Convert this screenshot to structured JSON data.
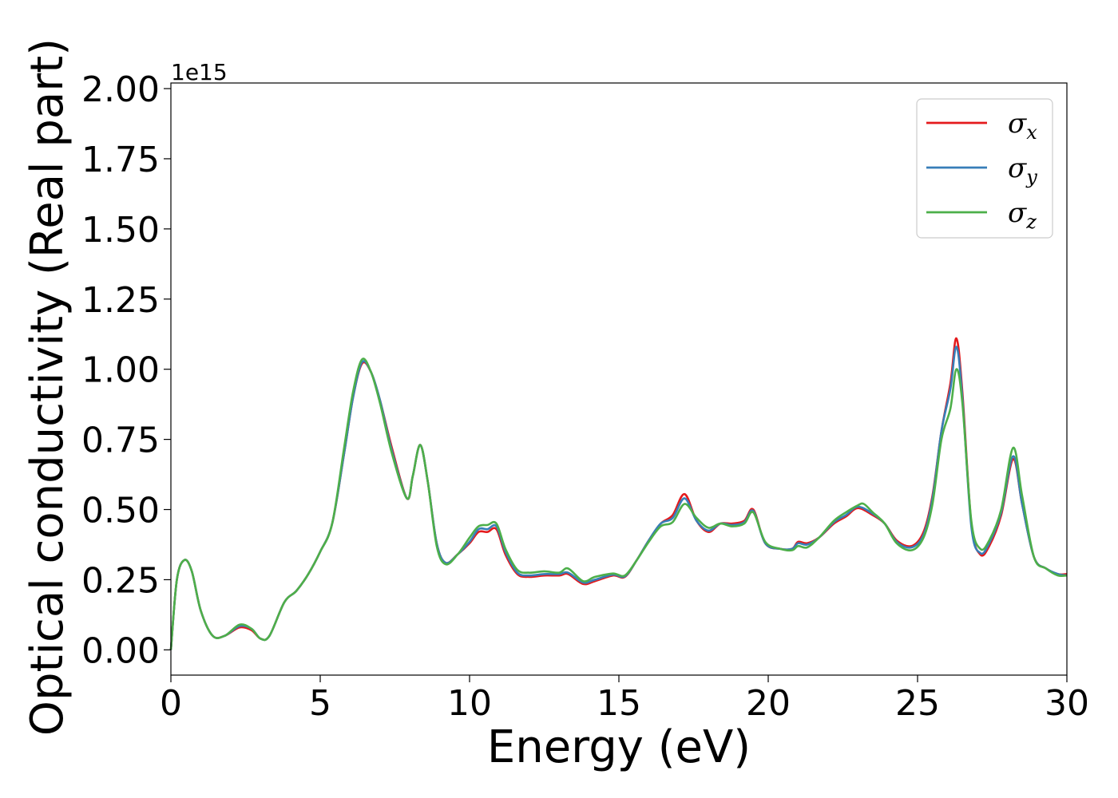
{
  "chart_data": {
    "type": "line",
    "xlabel": "Energy (eV)",
    "ylabel": "Optical conductivity (Real part)",
    "y_offset_label": "1e15",
    "xlim": [
      0,
      30
    ],
    "ylim": [
      -0.09,
      2.02
    ],
    "x_ticks": [
      0,
      5,
      10,
      15,
      20,
      25,
      30
    ],
    "x_tick_labels": [
      "0",
      "5",
      "10",
      "15",
      "20",
      "25",
      "30"
    ],
    "y_ticks": [
      0.0,
      0.25,
      0.5,
      0.75,
      1.0,
      1.25,
      1.5,
      1.75,
      2.0
    ],
    "y_tick_labels": [
      "0.00",
      "0.25",
      "0.50",
      "0.75",
      "1.00",
      "1.25",
      "1.50",
      "1.75",
      "2.00"
    ],
    "grid": false,
    "legend_position": "top-right",
    "series": [
      {
        "name": "σx",
        "label_symbol": "σ",
        "label_subscript": "x",
        "color": "#e41a1c",
        "points": [
          [
            0,
            0
          ],
          [
            0.2,
            0.25
          ],
          [
            0.45,
            0.32
          ],
          [
            0.7,
            0.28
          ],
          [
            1.0,
            0.14
          ],
          [
            1.4,
            0.05
          ],
          [
            1.8,
            0.05
          ],
          [
            2.3,
            0.08
          ],
          [
            2.7,
            0.07
          ],
          [
            3.0,
            0.04
          ],
          [
            3.3,
            0.05
          ],
          [
            3.8,
            0.17
          ],
          [
            4.2,
            0.21
          ],
          [
            4.6,
            0.27
          ],
          [
            5.0,
            0.35
          ],
          [
            5.4,
            0.45
          ],
          [
            5.8,
            0.7
          ],
          [
            6.1,
            0.9
          ],
          [
            6.4,
            1.02
          ],
          [
            6.7,
            0.99
          ],
          [
            7.0,
            0.89
          ],
          [
            7.4,
            0.72
          ],
          [
            7.9,
            0.54
          ],
          [
            8.1,
            0.62
          ],
          [
            8.35,
            0.73
          ],
          [
            8.6,
            0.6
          ],
          [
            8.9,
            0.38
          ],
          [
            9.2,
            0.31
          ],
          [
            9.6,
            0.34
          ],
          [
            10.0,
            0.38
          ],
          [
            10.3,
            0.42
          ],
          [
            10.6,
            0.42
          ],
          [
            10.9,
            0.43
          ],
          [
            11.2,
            0.34
          ],
          [
            11.6,
            0.27
          ],
          [
            12.0,
            0.26
          ],
          [
            12.5,
            0.265
          ],
          [
            13.0,
            0.265
          ],
          [
            13.3,
            0.27
          ],
          [
            13.8,
            0.235
          ],
          [
            14.2,
            0.245
          ],
          [
            14.8,
            0.265
          ],
          [
            15.2,
            0.26
          ],
          [
            15.6,
            0.32
          ],
          [
            16.0,
            0.39
          ],
          [
            16.4,
            0.45
          ],
          [
            16.8,
            0.48
          ],
          [
            17.2,
            0.555
          ],
          [
            17.6,
            0.46
          ],
          [
            18.0,
            0.42
          ],
          [
            18.4,
            0.45
          ],
          [
            18.8,
            0.45
          ],
          [
            19.2,
            0.46
          ],
          [
            19.5,
            0.5
          ],
          [
            19.9,
            0.38
          ],
          [
            20.4,
            0.36
          ],
          [
            20.8,
            0.36
          ],
          [
            21.0,
            0.385
          ],
          [
            21.3,
            0.38
          ],
          [
            21.7,
            0.4
          ],
          [
            22.2,
            0.45
          ],
          [
            22.6,
            0.475
          ],
          [
            23.0,
            0.505
          ],
          [
            23.5,
            0.48
          ],
          [
            23.9,
            0.45
          ],
          [
            24.3,
            0.39
          ],
          [
            24.8,
            0.37
          ],
          [
            25.2,
            0.42
          ],
          [
            25.5,
            0.55
          ],
          [
            25.8,
            0.78
          ],
          [
            26.1,
            0.95
          ],
          [
            26.3,
            1.11
          ],
          [
            26.5,
            0.92
          ],
          [
            26.8,
            0.45
          ],
          [
            27.1,
            0.34
          ],
          [
            27.4,
            0.37
          ],
          [
            27.8,
            0.48
          ],
          [
            28.2,
            0.68
          ],
          [
            28.5,
            0.52
          ],
          [
            28.9,
            0.33
          ],
          [
            29.3,
            0.29
          ],
          [
            29.7,
            0.27
          ],
          [
            30.0,
            0.27
          ]
        ]
      },
      {
        "name": "σy",
        "label_symbol": "σ",
        "label_subscript": "y",
        "color": "#377eb8",
        "points": [
          [
            0,
            0
          ],
          [
            0.2,
            0.25
          ],
          [
            0.45,
            0.32
          ],
          [
            0.7,
            0.28
          ],
          [
            1.0,
            0.14
          ],
          [
            1.4,
            0.05
          ],
          [
            1.8,
            0.05
          ],
          [
            2.3,
            0.085
          ],
          [
            2.7,
            0.075
          ],
          [
            3.0,
            0.04
          ],
          [
            3.3,
            0.05
          ],
          [
            3.8,
            0.17
          ],
          [
            4.2,
            0.21
          ],
          [
            4.6,
            0.27
          ],
          [
            5.0,
            0.35
          ],
          [
            5.4,
            0.45
          ],
          [
            5.8,
            0.7
          ],
          [
            6.1,
            0.9
          ],
          [
            6.4,
            1.025
          ],
          [
            6.7,
            0.99
          ],
          [
            7.0,
            0.89
          ],
          [
            7.4,
            0.71
          ],
          [
            7.9,
            0.54
          ],
          [
            8.1,
            0.62
          ],
          [
            8.35,
            0.73
          ],
          [
            8.6,
            0.6
          ],
          [
            8.9,
            0.38
          ],
          [
            9.2,
            0.31
          ],
          [
            9.6,
            0.34
          ],
          [
            10.0,
            0.385
          ],
          [
            10.3,
            0.43
          ],
          [
            10.6,
            0.43
          ],
          [
            10.9,
            0.44
          ],
          [
            11.2,
            0.35
          ],
          [
            11.6,
            0.275
          ],
          [
            12.0,
            0.265
          ],
          [
            12.5,
            0.27
          ],
          [
            13.0,
            0.27
          ],
          [
            13.3,
            0.275
          ],
          [
            13.8,
            0.24
          ],
          [
            14.2,
            0.25
          ],
          [
            14.8,
            0.268
          ],
          [
            15.2,
            0.262
          ],
          [
            15.6,
            0.32
          ],
          [
            16.0,
            0.39
          ],
          [
            16.4,
            0.45
          ],
          [
            16.8,
            0.47
          ],
          [
            17.2,
            0.54
          ],
          [
            17.6,
            0.46
          ],
          [
            18.0,
            0.425
          ],
          [
            18.4,
            0.45
          ],
          [
            18.8,
            0.445
          ],
          [
            19.2,
            0.455
          ],
          [
            19.5,
            0.495
          ],
          [
            19.9,
            0.38
          ],
          [
            20.4,
            0.36
          ],
          [
            20.8,
            0.36
          ],
          [
            21.0,
            0.38
          ],
          [
            21.3,
            0.375
          ],
          [
            21.7,
            0.4
          ],
          [
            22.2,
            0.455
          ],
          [
            22.6,
            0.48
          ],
          [
            23.0,
            0.51
          ],
          [
            23.5,
            0.485
          ],
          [
            23.9,
            0.45
          ],
          [
            24.3,
            0.385
          ],
          [
            24.8,
            0.365
          ],
          [
            25.2,
            0.41
          ],
          [
            25.5,
            0.54
          ],
          [
            25.8,
            0.78
          ],
          [
            26.1,
            0.93
          ],
          [
            26.3,
            1.08
          ],
          [
            26.5,
            0.9
          ],
          [
            26.8,
            0.44
          ],
          [
            27.1,
            0.345
          ],
          [
            27.4,
            0.38
          ],
          [
            27.8,
            0.49
          ],
          [
            28.2,
            0.69
          ],
          [
            28.5,
            0.52
          ],
          [
            28.9,
            0.33
          ],
          [
            29.3,
            0.29
          ],
          [
            29.7,
            0.27
          ],
          [
            30.0,
            0.265
          ]
        ]
      },
      {
        "name": "σz",
        "label_symbol": "σ",
        "label_subscript": "z",
        "color": "#4daf4a",
        "points": [
          [
            0,
            0
          ],
          [
            0.2,
            0.25
          ],
          [
            0.45,
            0.32
          ],
          [
            0.7,
            0.28
          ],
          [
            1.0,
            0.14
          ],
          [
            1.4,
            0.05
          ],
          [
            1.8,
            0.05
          ],
          [
            2.3,
            0.09
          ],
          [
            2.7,
            0.075
          ],
          [
            3.0,
            0.04
          ],
          [
            3.3,
            0.05
          ],
          [
            3.8,
            0.17
          ],
          [
            4.2,
            0.21
          ],
          [
            4.6,
            0.27
          ],
          [
            5.0,
            0.35
          ],
          [
            5.4,
            0.45
          ],
          [
            5.8,
            0.72
          ],
          [
            6.1,
            0.92
          ],
          [
            6.4,
            1.035
          ],
          [
            6.7,
            0.99
          ],
          [
            7.0,
            0.88
          ],
          [
            7.4,
            0.7
          ],
          [
            7.9,
            0.54
          ],
          [
            8.1,
            0.62
          ],
          [
            8.35,
            0.73
          ],
          [
            8.6,
            0.6
          ],
          [
            8.9,
            0.37
          ],
          [
            9.2,
            0.305
          ],
          [
            9.6,
            0.34
          ],
          [
            10.0,
            0.4
          ],
          [
            10.3,
            0.44
          ],
          [
            10.6,
            0.445
          ],
          [
            10.9,
            0.45
          ],
          [
            11.2,
            0.36
          ],
          [
            11.6,
            0.285
          ],
          [
            12.0,
            0.275
          ],
          [
            12.5,
            0.28
          ],
          [
            13.0,
            0.275
          ],
          [
            13.3,
            0.29
          ],
          [
            13.8,
            0.245
          ],
          [
            14.2,
            0.26
          ],
          [
            14.8,
            0.272
          ],
          [
            15.2,
            0.265
          ],
          [
            15.6,
            0.32
          ],
          [
            16.0,
            0.385
          ],
          [
            16.4,
            0.44
          ],
          [
            16.8,
            0.455
          ],
          [
            17.2,
            0.52
          ],
          [
            17.6,
            0.47
          ],
          [
            18.0,
            0.435
          ],
          [
            18.4,
            0.45
          ],
          [
            18.8,
            0.44
          ],
          [
            19.2,
            0.45
          ],
          [
            19.5,
            0.49
          ],
          [
            19.9,
            0.385
          ],
          [
            20.4,
            0.36
          ],
          [
            20.8,
            0.355
          ],
          [
            21.0,
            0.37
          ],
          [
            21.3,
            0.365
          ],
          [
            21.7,
            0.4
          ],
          [
            22.2,
            0.46
          ],
          [
            22.6,
            0.49
          ],
          [
            23.0,
            0.515
          ],
          [
            23.2,
            0.52
          ],
          [
            23.5,
            0.49
          ],
          [
            23.9,
            0.45
          ],
          [
            24.3,
            0.38
          ],
          [
            24.8,
            0.355
          ],
          [
            25.2,
            0.4
          ],
          [
            25.5,
            0.52
          ],
          [
            25.8,
            0.75
          ],
          [
            26.1,
            0.86
          ],
          [
            26.3,
            1.0
          ],
          [
            26.5,
            0.88
          ],
          [
            26.8,
            0.46
          ],
          [
            27.1,
            0.36
          ],
          [
            27.4,
            0.39
          ],
          [
            27.8,
            0.5
          ],
          [
            28.2,
            0.72
          ],
          [
            28.5,
            0.55
          ],
          [
            28.9,
            0.33
          ],
          [
            29.3,
            0.29
          ],
          [
            29.7,
            0.265
          ],
          [
            30.0,
            0.265
          ]
        ]
      }
    ]
  }
}
